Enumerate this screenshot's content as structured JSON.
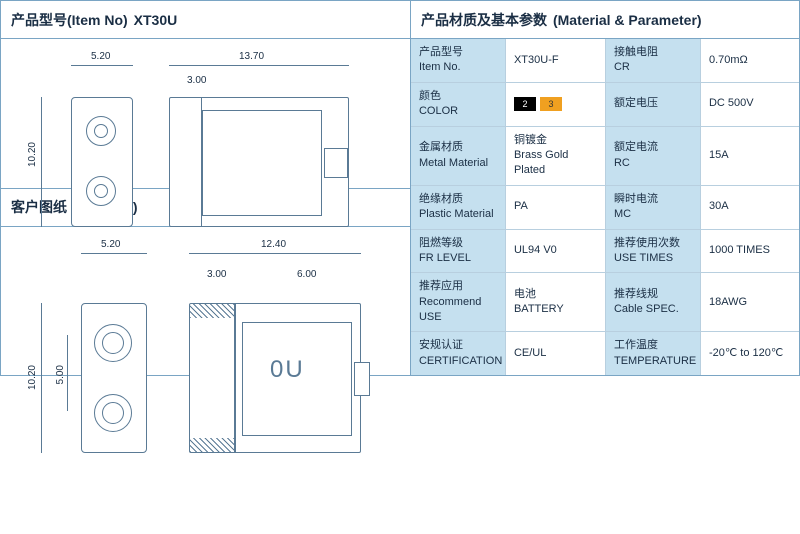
{
  "left": {
    "item_header_cn": "产品型号(Item No)",
    "item_no": "XT30U",
    "drawing_header_cn": "客户图纸",
    "drawing_header_en": "(Drawing)",
    "drawing1": {
      "dim1": "5.20",
      "dim2": "13.70",
      "dim3": "3.00",
      "dim_v": "10.20"
    },
    "drawing2": {
      "dim1": "5.20",
      "dim2": "12.40",
      "dim3": "3.00",
      "dim4": "6.00",
      "dim_v1": "10.20",
      "dim_v2": "5.00"
    }
  },
  "right": {
    "header_cn": "产品材质及基本参数",
    "header_en": "(Material & Parameter)",
    "rows": [
      {
        "l1cn": "产品型号",
        "l1en": "Item No.",
        "v1": "XT30U-F",
        "l2cn": "接触电阻",
        "l2en": "CR",
        "v2": "0.70mΩ"
      },
      {
        "l1cn": "颜色",
        "l1en": "COLOR",
        "v1": "_colors_",
        "l2cn": "额定电压",
        "l2en": "",
        "v2": "DC 500V"
      },
      {
        "l1cn": "金属材质",
        "l1en": "Metal Material",
        "v1": "铜镀金",
        "v1b": "Brass Gold Plated",
        "l2cn": "额定电流",
        "l2en": "RC",
        "v2": "15A"
      },
      {
        "l1cn": "绝缘材质",
        "l1en": "Plastic Material",
        "v1": "PA",
        "l2cn": "瞬时电流",
        "l2en": "MC",
        "v2": "30A"
      },
      {
        "l1cn": "阻燃等级",
        "l1en": "FR LEVEL",
        "v1": "UL94 V0",
        "l2cn": "推荐使用次数",
        "l2en": "USE TIMES",
        "v2": "1000 TIMES"
      },
      {
        "l1cn": "推荐应用",
        "l1en": "Recommend USE",
        "v1": "电池",
        "v1b": "BATTERY",
        "l2cn": "推荐线规",
        "l2en": "Cable SPEC.",
        "v2": "18AWG"
      },
      {
        "l1cn": "安规认证",
        "l1en": "CERTIFICATION",
        "v1": "CE/UL",
        "l2cn": "工作温度",
        "l2en": "TEMPERATURE",
        "v2": "-20℃ to 120℃"
      }
    ],
    "color_swatches": [
      {
        "label": "2",
        "class": "black"
      },
      {
        "label": "3",
        "class": "orange"
      }
    ]
  },
  "colors": {
    "border": "#7aa5c4",
    "label_bg": "#c5e0ef",
    "text": "#1a2e44",
    "drawing_line": "#5a7a95"
  }
}
